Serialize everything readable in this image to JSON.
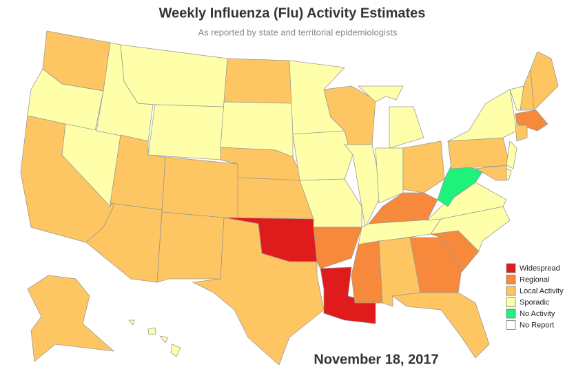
{
  "title": "Weekly Influenza (Flu) Activity Estimates",
  "subtitle": "As reported by state and territorial epidemiologists",
  "date": "November 18, 2017",
  "legend": [
    {
      "label": "Widespread",
      "color": "#e01b1b"
    },
    {
      "label": "Regional",
      "color": "#f7893c"
    },
    {
      "label": "Local Activity",
      "color": "#fec662"
    },
    {
      "label": "Sporadic",
      "color": "#ffffaa"
    },
    {
      "label": "No Activity",
      "color": "#1ef27a"
    },
    {
      "label": "No Report",
      "color": "#ffffff"
    }
  ],
  "state_levels": [
    "Local Activity",
    "Sporadic",
    "Local Activity",
    "Sporadic",
    "Sporadic",
    "Sporadic",
    "Sporadic",
    "Local Activity",
    "Local Activity",
    "Local Activity",
    "Local Activity",
    "Local Activity",
    "Sporadic",
    "Local Activity",
    "Local Activity",
    "Widespread",
    "Local Activity",
    "Sporadic",
    "Sporadic",
    "Sporadic",
    "Regional",
    "Widespread",
    "Local Activity",
    "Sporadic",
    "Sporadic",
    "Sporadic",
    "Sporadic",
    "Local Activity",
    "Regional",
    "Sporadic",
    "Regional",
    "Local Activity",
    "Regional",
    "Local Activity",
    "Regional",
    "Sporadic",
    "Sporadic",
    "No Activity",
    "Local Activity",
    "Sporadic",
    "Sporadic",
    "Local Activity",
    "Local Activity",
    "Regional",
    "Local Activity",
    "Sporadic",
    "Sporadic",
    "Local Activity",
    "Local Activity",
    "Sporadic",
    "Sporadic",
    "Sporadic",
    "Sporadic"
  ]
}
